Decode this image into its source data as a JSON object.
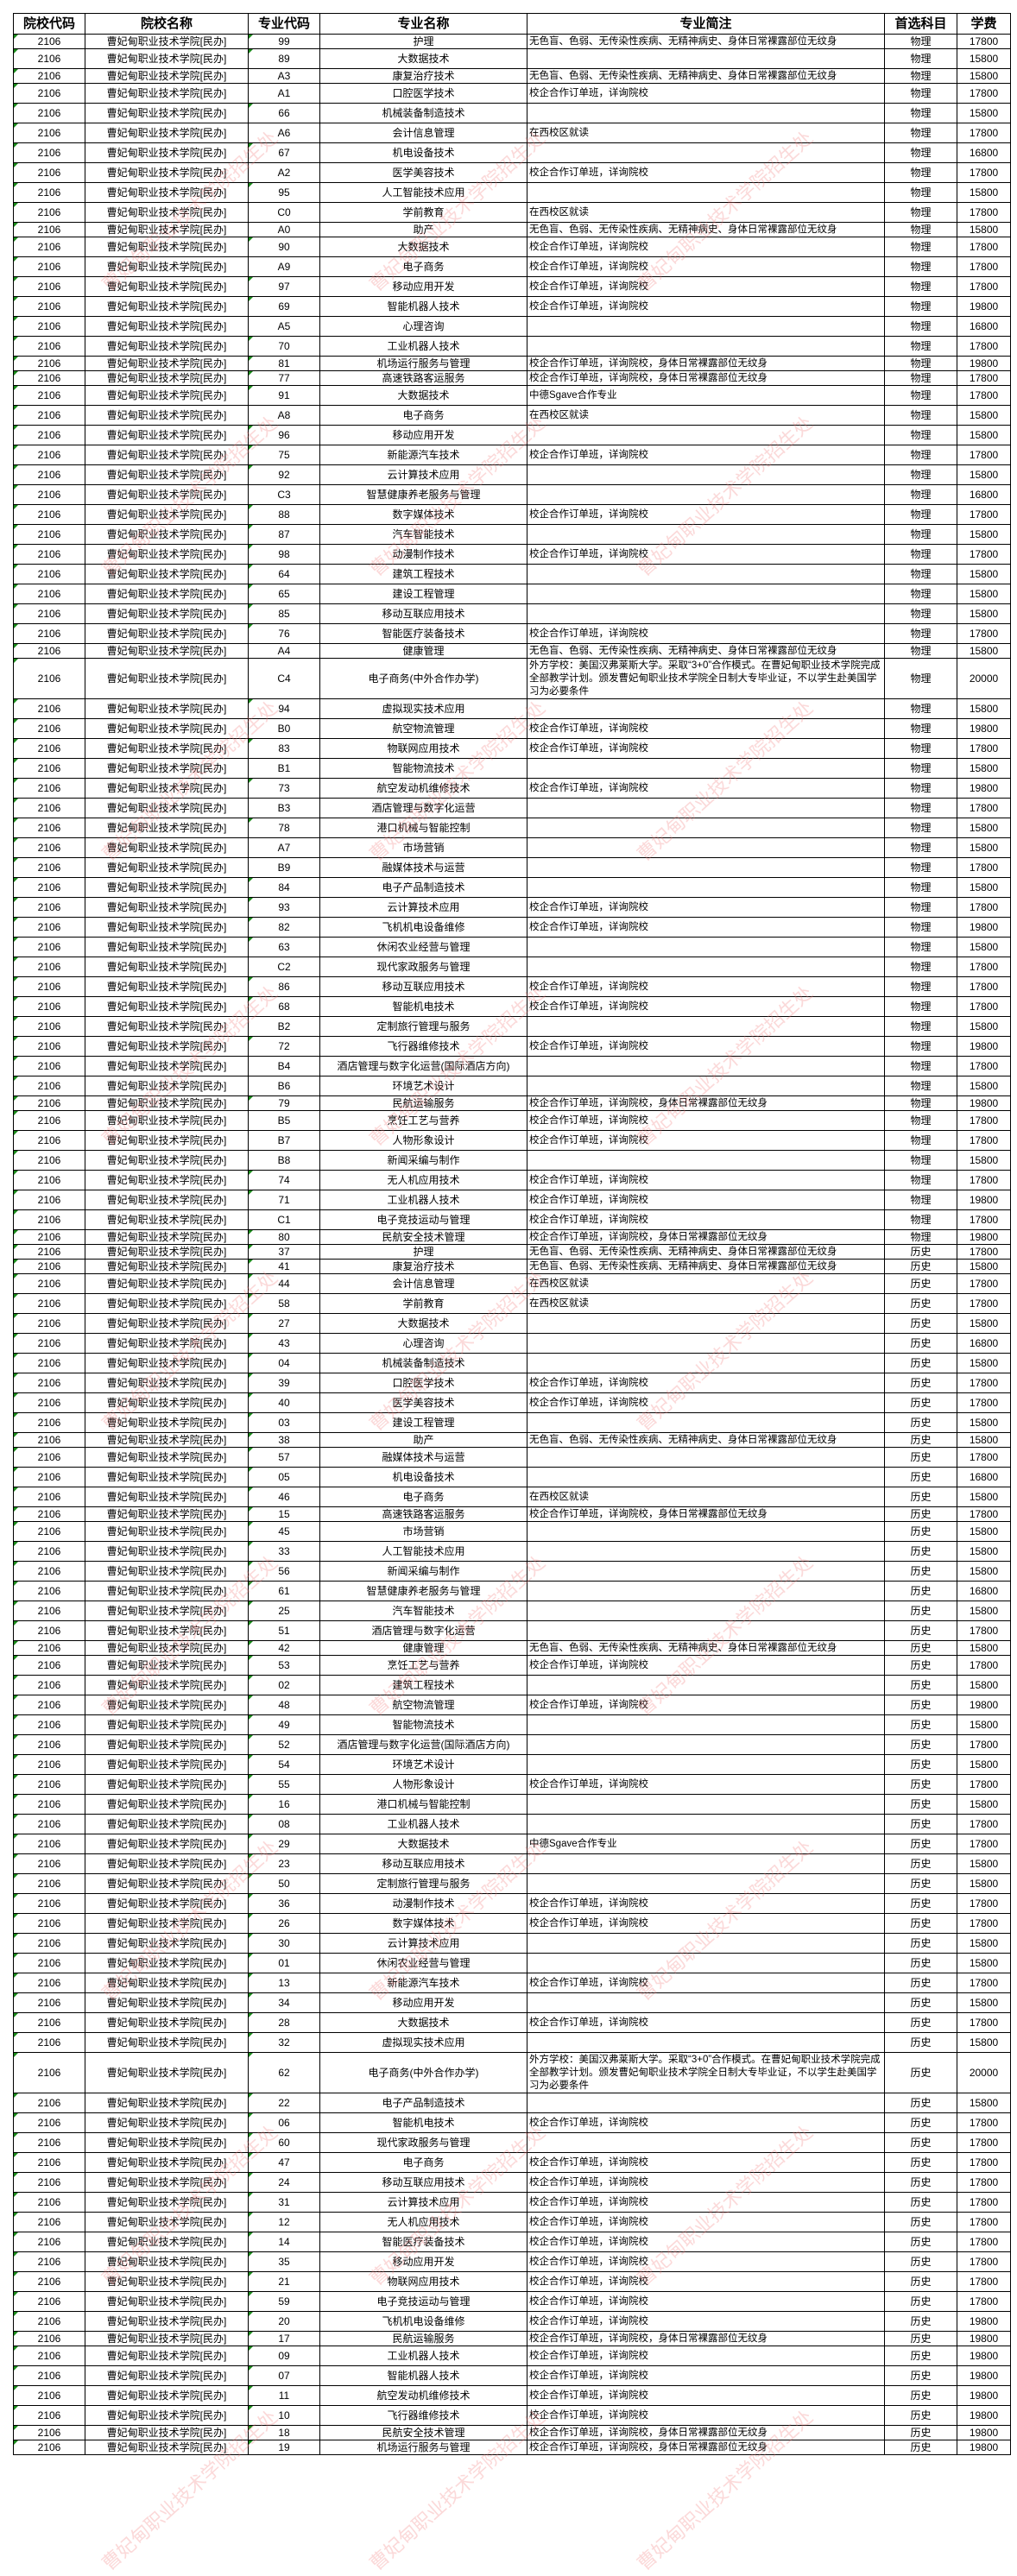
{
  "headers": [
    "院校代码",
    "院校名称",
    "专业代码",
    "专业名称",
    "专业简注",
    "首选科目",
    "学费"
  ],
  "school_code": "2106",
  "school_name": "曹妃甸职业技术学院[民办]",
  "watermark": "曹妃甸职业技术学院招生处",
  "colors": {
    "watermark": "#f07878",
    "number_marker": "#1a8a1a"
  },
  "rows": [
    {
      "c": "99",
      "m": "护理",
      "n": "无色盲、色弱、无传染性疾病、无精神病史、身体日常裸露部位无纹身",
      "s": "物理",
      "f": "17800"
    },
    {
      "c": "89",
      "m": "大数据技术",
      "n": "",
      "s": "物理",
      "f": "15800"
    },
    {
      "c": "A3",
      "m": "康复治疗技术",
      "n": "无色盲、色弱、无传染性疾病、无精神病史、身体日常裸露部位无纹身",
      "s": "物理",
      "f": "15800"
    },
    {
      "c": "A1",
      "m": "口腔医学技术",
      "n": "校企合作订单班，详询院校",
      "s": "物理",
      "f": "17800"
    },
    {
      "c": "66",
      "m": "机械装备制造技术",
      "n": "",
      "s": "物理",
      "f": "15800"
    },
    {
      "c": "A6",
      "m": "会计信息管理",
      "n": "在西校区就读",
      "s": "物理",
      "f": "17800"
    },
    {
      "c": "67",
      "m": "机电设备技术",
      "n": "",
      "s": "物理",
      "f": "16800"
    },
    {
      "c": "A2",
      "m": "医学美容技术",
      "n": "校企合作订单班，详询院校",
      "s": "物理",
      "f": "17800"
    },
    {
      "c": "95",
      "m": "人工智能技术应用",
      "n": "",
      "s": "物理",
      "f": "15800"
    },
    {
      "c": "C0",
      "m": "学前教育",
      "n": "在西校区就读",
      "s": "物理",
      "f": "17800"
    },
    {
      "c": "A0",
      "m": "助产",
      "n": "无色盲、色弱、无传染性疾病、无精神病史、身体日常裸露部位无纹身",
      "s": "物理",
      "f": "15800"
    },
    {
      "c": "90",
      "m": "大数据技术",
      "n": "校企合作订单班，详询院校",
      "s": "物理",
      "f": "17800"
    },
    {
      "c": "A9",
      "m": "电子商务",
      "n": "校企合作订单班，详询院校",
      "s": "物理",
      "f": "17800"
    },
    {
      "c": "97",
      "m": "移动应用开发",
      "n": "校企合作订单班，详询院校",
      "s": "物理",
      "f": "17800"
    },
    {
      "c": "69",
      "m": "智能机器人技术",
      "n": "校企合作订单班，详询院校",
      "s": "物理",
      "f": "19800"
    },
    {
      "c": "A5",
      "m": "心理咨询",
      "n": "",
      "s": "物理",
      "f": "16800"
    },
    {
      "c": "70",
      "m": "工业机器人技术",
      "n": "",
      "s": "物理",
      "f": "17800"
    },
    {
      "c": "81",
      "m": "机场运行服务与管理",
      "n": "校企合作订单班，详询院校，身体日常裸露部位无纹身",
      "s": "物理",
      "f": "19800"
    },
    {
      "c": "77",
      "m": "高速铁路客运服务",
      "n": "校企合作订单班，详询院校，身体日常裸露部位无纹身",
      "s": "物理",
      "f": "17800"
    },
    {
      "c": "91",
      "m": "大数据技术",
      "n": "中德Sgave合作专业",
      "s": "物理",
      "f": "17800"
    },
    {
      "c": "A8",
      "m": "电子商务",
      "n": "在西校区就读",
      "s": "物理",
      "f": "15800"
    },
    {
      "c": "96",
      "m": "移动应用开发",
      "n": "",
      "s": "物理",
      "f": "15800"
    },
    {
      "c": "75",
      "m": "新能源汽车技术",
      "n": "校企合作订单班，详询院校",
      "s": "物理",
      "f": "17800"
    },
    {
      "c": "92",
      "m": "云计算技术应用",
      "n": "",
      "s": "物理",
      "f": "15800"
    },
    {
      "c": "C3",
      "m": "智慧健康养老服务与管理",
      "n": "",
      "s": "物理",
      "f": "16800"
    },
    {
      "c": "88",
      "m": "数字媒体技术",
      "n": "校企合作订单班，详询院校",
      "s": "物理",
      "f": "17800"
    },
    {
      "c": "87",
      "m": "汽车智能技术",
      "n": "",
      "s": "物理",
      "f": "15800"
    },
    {
      "c": "98",
      "m": "动漫制作技术",
      "n": "校企合作订单班，详询院校",
      "s": "物理",
      "f": "17800"
    },
    {
      "c": "64",
      "m": "建筑工程技术",
      "n": "",
      "s": "物理",
      "f": "15800"
    },
    {
      "c": "65",
      "m": "建设工程管理",
      "n": "",
      "s": "物理",
      "f": "15800"
    },
    {
      "c": "85",
      "m": "移动互联应用技术",
      "n": "",
      "s": "物理",
      "f": "15800"
    },
    {
      "c": "76",
      "m": "智能医疗装备技术",
      "n": "校企合作订单班，详询院校",
      "s": "物理",
      "f": "17800"
    },
    {
      "c": "A4",
      "m": "健康管理",
      "n": "无色盲、色弱、无传染性疾病、无精神病史、身体日常裸露部位无纹身",
      "s": "物理",
      "f": "15800"
    },
    {
      "c": "C4",
      "m": "电子商务(中外合作办学)",
      "n": "外方学校：美国汉弗莱斯大学。采取“3+0”合作模式。在曹妃甸职业技术学院完成全部教学计划。颁发曹妃甸职业技术学院全日制大专毕业证，不以学生赴美国学习为必要条件",
      "s": "物理",
      "f": "20000"
    },
    {
      "c": "94",
      "m": "虚拟现实技术应用",
      "n": "",
      "s": "物理",
      "f": "15800"
    },
    {
      "c": "B0",
      "m": "航空物流管理",
      "n": "校企合作订单班，详询院校",
      "s": "物理",
      "f": "19800"
    },
    {
      "c": "83",
      "m": "物联网应用技术",
      "n": "校企合作订单班，详询院校",
      "s": "物理",
      "f": "17800"
    },
    {
      "c": "B1",
      "m": "智能物流技术",
      "n": "",
      "s": "物理",
      "f": "15800"
    },
    {
      "c": "73",
      "m": "航空发动机维修技术",
      "n": "校企合作订单班，详询院校",
      "s": "物理",
      "f": "19800"
    },
    {
      "c": "B3",
      "m": "酒店管理与数字化运营",
      "n": "",
      "s": "物理",
      "f": "17800"
    },
    {
      "c": "78",
      "m": "港口机械与智能控制",
      "n": "",
      "s": "物理",
      "f": "15800"
    },
    {
      "c": "A7",
      "m": "市场营销",
      "n": "",
      "s": "物理",
      "f": "15800"
    },
    {
      "c": "B9",
      "m": "融媒体技术与运营",
      "n": "",
      "s": "物理",
      "f": "17800"
    },
    {
      "c": "84",
      "m": "电子产品制造技术",
      "n": "",
      "s": "物理",
      "f": "15800"
    },
    {
      "c": "93",
      "m": "云计算技术应用",
      "n": "校企合作订单班，详询院校",
      "s": "物理",
      "f": "17800"
    },
    {
      "c": "82",
      "m": "飞机机电设备维修",
      "n": "校企合作订单班，详询院校",
      "s": "物理",
      "f": "19800"
    },
    {
      "c": "63",
      "m": "休闲农业经营与管理",
      "n": "",
      "s": "物理",
      "f": "15800"
    },
    {
      "c": "C2",
      "m": "现代家政服务与管理",
      "n": "",
      "s": "物理",
      "f": "17800"
    },
    {
      "c": "86",
      "m": "移动互联应用技术",
      "n": "校企合作订单班，详询院校",
      "s": "物理",
      "f": "17800"
    },
    {
      "c": "68",
      "m": "智能机电技术",
      "n": "校企合作订单班，详询院校",
      "s": "物理",
      "f": "17800"
    },
    {
      "c": "B2",
      "m": "定制旅行管理与服务",
      "n": "",
      "s": "物理",
      "f": "15800"
    },
    {
      "c": "72",
      "m": "飞行器维修技术",
      "n": "校企合作订单班，详询院校",
      "s": "物理",
      "f": "19800"
    },
    {
      "c": "B4",
      "m": "酒店管理与数字化运营(国际酒店方向)",
      "n": "",
      "s": "物理",
      "f": "17800"
    },
    {
      "c": "B6",
      "m": "环境艺术设计",
      "n": "",
      "s": "物理",
      "f": "15800"
    },
    {
      "c": "79",
      "m": "民航运输服务",
      "n": "校企合作订单班，详询院校，身体日常裸露部位无纹身",
      "s": "物理",
      "f": "19800"
    },
    {
      "c": "B5",
      "m": "烹饪工艺与营养",
      "n": "校企合作订单班，详询院校",
      "s": "物理",
      "f": "17800"
    },
    {
      "c": "B7",
      "m": "人物形象设计",
      "n": "校企合作订单班，详询院校",
      "s": "物理",
      "f": "17800"
    },
    {
      "c": "B8",
      "m": "新闻采编与制作",
      "n": "",
      "s": "物理",
      "f": "15800"
    },
    {
      "c": "74",
      "m": "无人机应用技术",
      "n": "校企合作订单班，详询院校",
      "s": "物理",
      "f": "17800"
    },
    {
      "c": "71",
      "m": "工业机器人技术",
      "n": "校企合作订单班，详询院校",
      "s": "物理",
      "f": "19800"
    },
    {
      "c": "C1",
      "m": "电子竞技运动与管理",
      "n": "校企合作订单班，详询院校",
      "s": "物理",
      "f": "17800"
    },
    {
      "c": "80",
      "m": "民航安全技术管理",
      "n": "校企合作订单班，详询院校，身体日常裸露部位无纹身",
      "s": "物理",
      "f": "19800"
    },
    {
      "c": "37",
      "m": "护理",
      "n": "无色盲、色弱、无传染性疾病、无精神病史、身体日常裸露部位无纹身",
      "s": "历史",
      "f": "17800"
    },
    {
      "c": "41",
      "m": "康复治疗技术",
      "n": "无色盲、色弱、无传染性疾病、无精神病史、身体日常裸露部位无纹身",
      "s": "历史",
      "f": "15800"
    },
    {
      "c": "44",
      "m": "会计信息管理",
      "n": "在西校区就读",
      "s": "历史",
      "f": "17800"
    },
    {
      "c": "58",
      "m": "学前教育",
      "n": "在西校区就读",
      "s": "历史",
      "f": "17800"
    },
    {
      "c": "27",
      "m": "大数据技术",
      "n": "",
      "s": "历史",
      "f": "15800"
    },
    {
      "c": "43",
      "m": "心理咨询",
      "n": "",
      "s": "历史",
      "f": "16800"
    },
    {
      "c": "04",
      "m": "机械装备制造技术",
      "n": "",
      "s": "历史",
      "f": "15800"
    },
    {
      "c": "39",
      "m": "口腔医学技术",
      "n": "校企合作订单班，详询院校",
      "s": "历史",
      "f": "17800"
    },
    {
      "c": "40",
      "m": "医学美容技术",
      "n": "校企合作订单班，详询院校",
      "s": "历史",
      "f": "17800"
    },
    {
      "c": "03",
      "m": "建设工程管理",
      "n": "",
      "s": "历史",
      "f": "15800"
    },
    {
      "c": "38",
      "m": "助产",
      "n": "无色盲、色弱、无传染性疾病、无精神病史、身体日常裸露部位无纹身",
      "s": "历史",
      "f": "15800"
    },
    {
      "c": "57",
      "m": "融媒体技术与运营",
      "n": "",
      "s": "历史",
      "f": "17800"
    },
    {
      "c": "05",
      "m": "机电设备技术",
      "n": "",
      "s": "历史",
      "f": "16800"
    },
    {
      "c": "46",
      "m": "电子商务",
      "n": "在西校区就读",
      "s": "历史",
      "f": "15800"
    },
    {
      "c": "15",
      "m": "高速铁路客运服务",
      "n": "校企合作订单班，详询院校，身体日常裸露部位无纹身",
      "s": "历史",
      "f": "17800"
    },
    {
      "c": "45",
      "m": "市场营销",
      "n": "",
      "s": "历史",
      "f": "15800"
    },
    {
      "c": "33",
      "m": "人工智能技术应用",
      "n": "",
      "s": "历史",
      "f": "15800"
    },
    {
      "c": "56",
      "m": "新闻采编与制作",
      "n": "",
      "s": "历史",
      "f": "15800"
    },
    {
      "c": "61",
      "m": "智慧健康养老服务与管理",
      "n": "",
      "s": "历史",
      "f": "16800"
    },
    {
      "c": "25",
      "m": "汽车智能技术",
      "n": "",
      "s": "历史",
      "f": "15800"
    },
    {
      "c": "51",
      "m": "酒店管理与数字化运营",
      "n": "",
      "s": "历史",
      "f": "17800"
    },
    {
      "c": "42",
      "m": "健康管理",
      "n": "无色盲、色弱、无传染性疾病、无精神病史、身体日常裸露部位无纹身",
      "s": "历史",
      "f": "15800"
    },
    {
      "c": "53",
      "m": "烹饪工艺与营养",
      "n": "校企合作订单班，详询院校",
      "s": "历史",
      "f": "17800"
    },
    {
      "c": "02",
      "m": "建筑工程技术",
      "n": "",
      "s": "历史",
      "f": "15800"
    },
    {
      "c": "48",
      "m": "航空物流管理",
      "n": "校企合作订单班，详询院校",
      "s": "历史",
      "f": "19800"
    },
    {
      "c": "49",
      "m": "智能物流技术",
      "n": "",
      "s": "历史",
      "f": "15800"
    },
    {
      "c": "52",
      "m": "酒店管理与数字化运营(国际酒店方向)",
      "n": "",
      "s": "历史",
      "f": "17800"
    },
    {
      "c": "54",
      "m": "环境艺术设计",
      "n": "",
      "s": "历史",
      "f": "15800"
    },
    {
      "c": "55",
      "m": "人物形象设计",
      "n": "校企合作订单班，详询院校",
      "s": "历史",
      "f": "17800"
    },
    {
      "c": "16",
      "m": "港口机械与智能控制",
      "n": "",
      "s": "历史",
      "f": "15800"
    },
    {
      "c": "08",
      "m": "工业机器人技术",
      "n": "",
      "s": "历史",
      "f": "17800"
    },
    {
      "c": "29",
      "m": "大数据技术",
      "n": "中德Sgave合作专业",
      "s": "历史",
      "f": "17800"
    },
    {
      "c": "23",
      "m": "移动互联应用技术",
      "n": "",
      "s": "历史",
      "f": "15800"
    },
    {
      "c": "50",
      "m": "定制旅行管理与服务",
      "n": "",
      "s": "历史",
      "f": "15800"
    },
    {
      "c": "36",
      "m": "动漫制作技术",
      "n": "校企合作订单班，详询院校",
      "s": "历史",
      "f": "17800"
    },
    {
      "c": "26",
      "m": "数字媒体技术",
      "n": "校企合作订单班，详询院校",
      "s": "历史",
      "f": "17800"
    },
    {
      "c": "30",
      "m": "云计算技术应用",
      "n": "",
      "s": "历史",
      "f": "15800"
    },
    {
      "c": "01",
      "m": "休闲农业经营与管理",
      "n": "",
      "s": "历史",
      "f": "15800"
    },
    {
      "c": "13",
      "m": "新能源汽车技术",
      "n": "校企合作订单班，详询院校",
      "s": "历史",
      "f": "17800"
    },
    {
      "c": "34",
      "m": "移动应用开发",
      "n": "",
      "s": "历史",
      "f": "15800"
    },
    {
      "c": "28",
      "m": "大数据技术",
      "n": "校企合作订单班，详询院校",
      "s": "历史",
      "f": "17800"
    },
    {
      "c": "32",
      "m": "虚拟现实技术应用",
      "n": "",
      "s": "历史",
      "f": "15800"
    },
    {
      "c": "62",
      "m": "电子商务(中外合作办学)",
      "n": "外方学校：美国汉弗莱斯大学。采取“3+0”合作模式。在曹妃甸职业技术学院完成全部教学计划。颁发曹妃甸职业技术学院全日制大专毕业证，不以学生赴美国学习为必要条件",
      "s": "历史",
      "f": "20000"
    },
    {
      "c": "22",
      "m": "电子产品制造技术",
      "n": "",
      "s": "历史",
      "f": "15800"
    },
    {
      "c": "06",
      "m": "智能机电技术",
      "n": "校企合作订单班，详询院校",
      "s": "历史",
      "f": "17800"
    },
    {
      "c": "60",
      "m": "现代家政服务与管理",
      "n": "",
      "s": "历史",
      "f": "17800"
    },
    {
      "c": "47",
      "m": "电子商务",
      "n": "校企合作订单班，详询院校",
      "s": "历史",
      "f": "17800"
    },
    {
      "c": "24",
      "m": "移动互联应用技术",
      "n": "校企合作订单班，详询院校",
      "s": "历史",
      "f": "17800"
    },
    {
      "c": "31",
      "m": "云计算技术应用",
      "n": "校企合作订单班，详询院校",
      "s": "历史",
      "f": "17800"
    },
    {
      "c": "12",
      "m": "无人机应用技术",
      "n": "校企合作订单班，详询院校",
      "s": "历史",
      "f": "17800"
    },
    {
      "c": "14",
      "m": "智能医疗装备技术",
      "n": "校企合作订单班，详询院校",
      "s": "历史",
      "f": "17800"
    },
    {
      "c": "35",
      "m": "移动应用开发",
      "n": "校企合作订单班，详询院校",
      "s": "历史",
      "f": "17800"
    },
    {
      "c": "21",
      "m": "物联网应用技术",
      "n": "校企合作订单班，详询院校",
      "s": "历史",
      "f": "17800"
    },
    {
      "c": "59",
      "m": "电子竞技运动与管理",
      "n": "校企合作订单班，详询院校",
      "s": "历史",
      "f": "17800"
    },
    {
      "c": "20",
      "m": "飞机机电设备维修",
      "n": "校企合作订单班，详询院校",
      "s": "历史",
      "f": "19800"
    },
    {
      "c": "17",
      "m": "民航运输服务",
      "n": "校企合作订单班，详询院校，身体日常裸露部位无纹身",
      "s": "历史",
      "f": "19800"
    },
    {
      "c": "09",
      "m": "工业机器人技术",
      "n": "校企合作订单班，详询院校",
      "s": "历史",
      "f": "19800"
    },
    {
      "c": "07",
      "m": "智能机器人技术",
      "n": "校企合作订单班，详询院校",
      "s": "历史",
      "f": "19800"
    },
    {
      "c": "11",
      "m": "航空发动机维修技术",
      "n": "校企合作订单班，详询院校",
      "s": "历史",
      "f": "19800"
    },
    {
      "c": "10",
      "m": "飞行器维修技术",
      "n": "校企合作订单班，详询院校",
      "s": "历史",
      "f": "19800"
    },
    {
      "c": "18",
      "m": "民航安全技术管理",
      "n": "校企合作订单班，详询院校，身体日常裸露部位无纹身",
      "s": "历史",
      "f": "19800"
    },
    {
      "c": "19",
      "m": "机场运行服务与管理",
      "n": "校企合作订单班，详询院校，身体日常裸露部位无纹身",
      "s": "历史",
      "f": "19800"
    }
  ]
}
